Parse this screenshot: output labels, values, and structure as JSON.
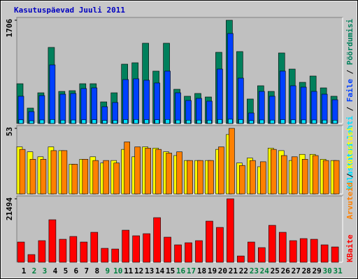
{
  "title": "Kasutuspäevad Juuli 2011",
  "legend_separator": "/",
  "chart_data": [
    {
      "type": "bar",
      "ylim": [
        0,
        1706
      ],
      "yticks": [
        1706
      ],
      "series": [
        {
          "name": "Pöördumisi",
          "color": "#00805c",
          "values": [
            657,
            254,
            507,
            1257,
            530,
            542,
            657,
            657,
            357,
            507,
            980,
            1003,
            1326,
            865,
            1326,
            565,
            450,
            496,
            438,
            1176,
            1706,
            1188,
            404,
            623,
            530,
            1165,
            899,
            680,
            784,
            588,
            450
          ]
        },
        {
          "name": "Faile",
          "color": "#0040ff",
          "values": [
            450,
            196,
            461,
            968,
            484,
            496,
            577,
            588,
            277,
            346,
            726,
            738,
            715,
            669,
            865,
            507,
            380,
            415,
            369,
            899,
            1487,
            749,
            173,
            530,
            450,
            865,
            623,
            600,
            530,
            484,
            392
          ]
        },
        {
          "name": "Külastatud lehti",
          "color": "#00e0ff",
          "values": [
            60,
            45,
            58,
            65,
            55,
            57,
            60,
            62,
            50,
            52,
            64,
            66,
            63,
            61,
            66,
            56,
            54,
            55,
            53,
            65,
            70,
            64,
            48,
            58,
            56,
            63,
            60,
            59,
            58,
            56,
            54
          ]
        }
      ]
    },
    {
      "type": "bar",
      "ylim": [
        0,
        53
      ],
      "yticks": [
        53
      ],
      "series": [
        {
          "name": "Külastusi",
          "color": "#ffff00",
          "values": [
            38,
            34,
            30,
            38,
            35,
            24,
            28,
            30,
            25,
            27,
            36,
            30,
            38,
            37,
            34,
            31,
            27,
            27,
            27,
            36,
            48,
            25,
            29,
            22,
            37,
            35,
            27,
            32,
            32,
            28,
            27
          ]
        },
        {
          "name": "Arvuteid",
          "color": "#ff8000",
          "values": [
            36,
            28,
            28,
            35,
            35,
            24,
            28,
            27,
            27,
            25,
            42,
            38,
            37,
            36,
            33,
            34,
            27,
            27,
            27,
            38,
            53,
            23,
            27,
            26,
            36,
            31,
            30,
            28,
            31,
            27,
            27
          ]
        }
      ]
    },
    {
      "type": "bar",
      "ylim": [
        0,
        21494
      ],
      "yticks": [
        21494
      ],
      "categories": [
        "1",
        "2",
        "3",
        "4",
        "5",
        "6",
        "7",
        "8",
        "9",
        "10",
        "11",
        "12",
        "13",
        "14",
        "15",
        "16",
        "17",
        "18",
        "19",
        "20",
        "21",
        "22",
        "23",
        "24",
        "25",
        "26",
        "27",
        "28",
        "29",
        "30",
        "31"
      ],
      "x_label_colors": [
        "#000000",
        "#008040",
        "#008040",
        "#000000",
        "#000000",
        "#000000",
        "#000000",
        "#000000",
        "#008040",
        "#008040",
        "#000000",
        "#000000",
        "#000000",
        "#000000",
        "#000000",
        "#008040",
        "#008040",
        "#000000",
        "#000000",
        "#000000",
        "#000000",
        "#000000",
        "#008040",
        "#008040",
        "#000000",
        "#000000",
        "#000000",
        "#000000",
        "#000000",
        "#008040",
        "#008040"
      ],
      "series": [
        {
          "name": "KBaite",
          "color": "#ff0000",
          "values": [
            6850,
            2600,
            7320,
            14400,
            7790,
            8740,
            6850,
            10150,
            4720,
            4480,
            10860,
            8970,
            9680,
            15110,
            8500,
            5900,
            6610,
            7320,
            13930,
            11800,
            21494,
            2120,
            6850,
            4960,
            12510,
            10150,
            7320,
            8020,
            7790,
            5900,
            5190
          ]
        }
      ]
    }
  ]
}
